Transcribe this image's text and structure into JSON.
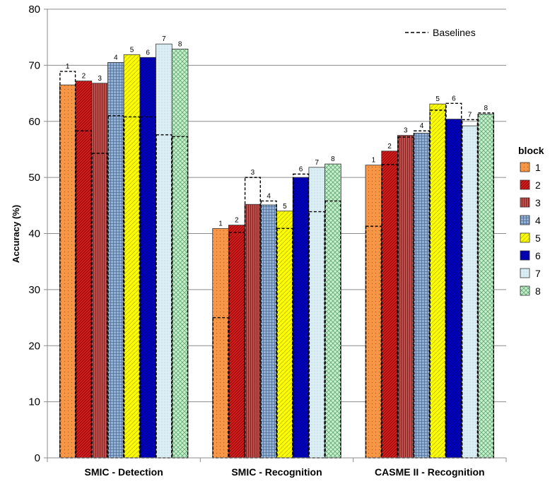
{
  "chart_data": {
    "type": "bar",
    "ylabel": "Accuracy (%)",
    "ylim": [
      0,
      80
    ],
    "yticks": [
      0,
      10,
      20,
      30,
      40,
      50,
      60,
      70,
      80
    ],
    "grid": true,
    "categories": [
      "SMIC - Detection",
      "SMIC - Recognition",
      "CASME II - Recognition"
    ],
    "legend": {
      "title": "block",
      "position": "right"
    },
    "baseline_legend": {
      "label": "Baselines",
      "position": "top-right"
    },
    "series": [
      {
        "name": "1",
        "color": "#f79646",
        "values": [
          66.5,
          40.9,
          52.2
        ],
        "baselines": [
          68.9,
          25.0,
          41.3
        ]
      },
      {
        "name": "2",
        "color": "#d42020",
        "values": [
          67.2,
          41.5,
          54.7
        ],
        "baselines": [
          58.3,
          40.2,
          52.3
        ]
      },
      {
        "name": "3",
        "color": "#c0504d",
        "values": [
          66.8,
          45.2,
          57.5
        ],
        "baselines": [
          54.3,
          50.0,
          57.2
        ]
      },
      {
        "name": "4",
        "color": "#95b3d7",
        "values": [
          70.5,
          45.1,
          57.9
        ],
        "baselines": [
          61.0,
          45.8,
          58.3
        ]
      },
      {
        "name": "5",
        "color": "#ffff00",
        "values": [
          71.9,
          44.0,
          63.1
        ],
        "baselines": [
          60.8,
          40.9,
          62.0
        ]
      },
      {
        "name": "6",
        "color": "#0000cc",
        "values": [
          71.4,
          50.0,
          60.4
        ],
        "baselines": [
          60.8,
          50.6,
          63.2
        ]
      },
      {
        "name": "7",
        "color": "#dbeef4",
        "values": [
          73.8,
          51.8,
          59.2
        ],
        "baselines": [
          57.6,
          43.9,
          60.3
        ]
      },
      {
        "name": "8",
        "color": "#c6efce",
        "values": [
          72.9,
          52.4,
          61.3
        ],
        "baselines": [
          57.3,
          45.8,
          61.5
        ]
      }
    ]
  }
}
